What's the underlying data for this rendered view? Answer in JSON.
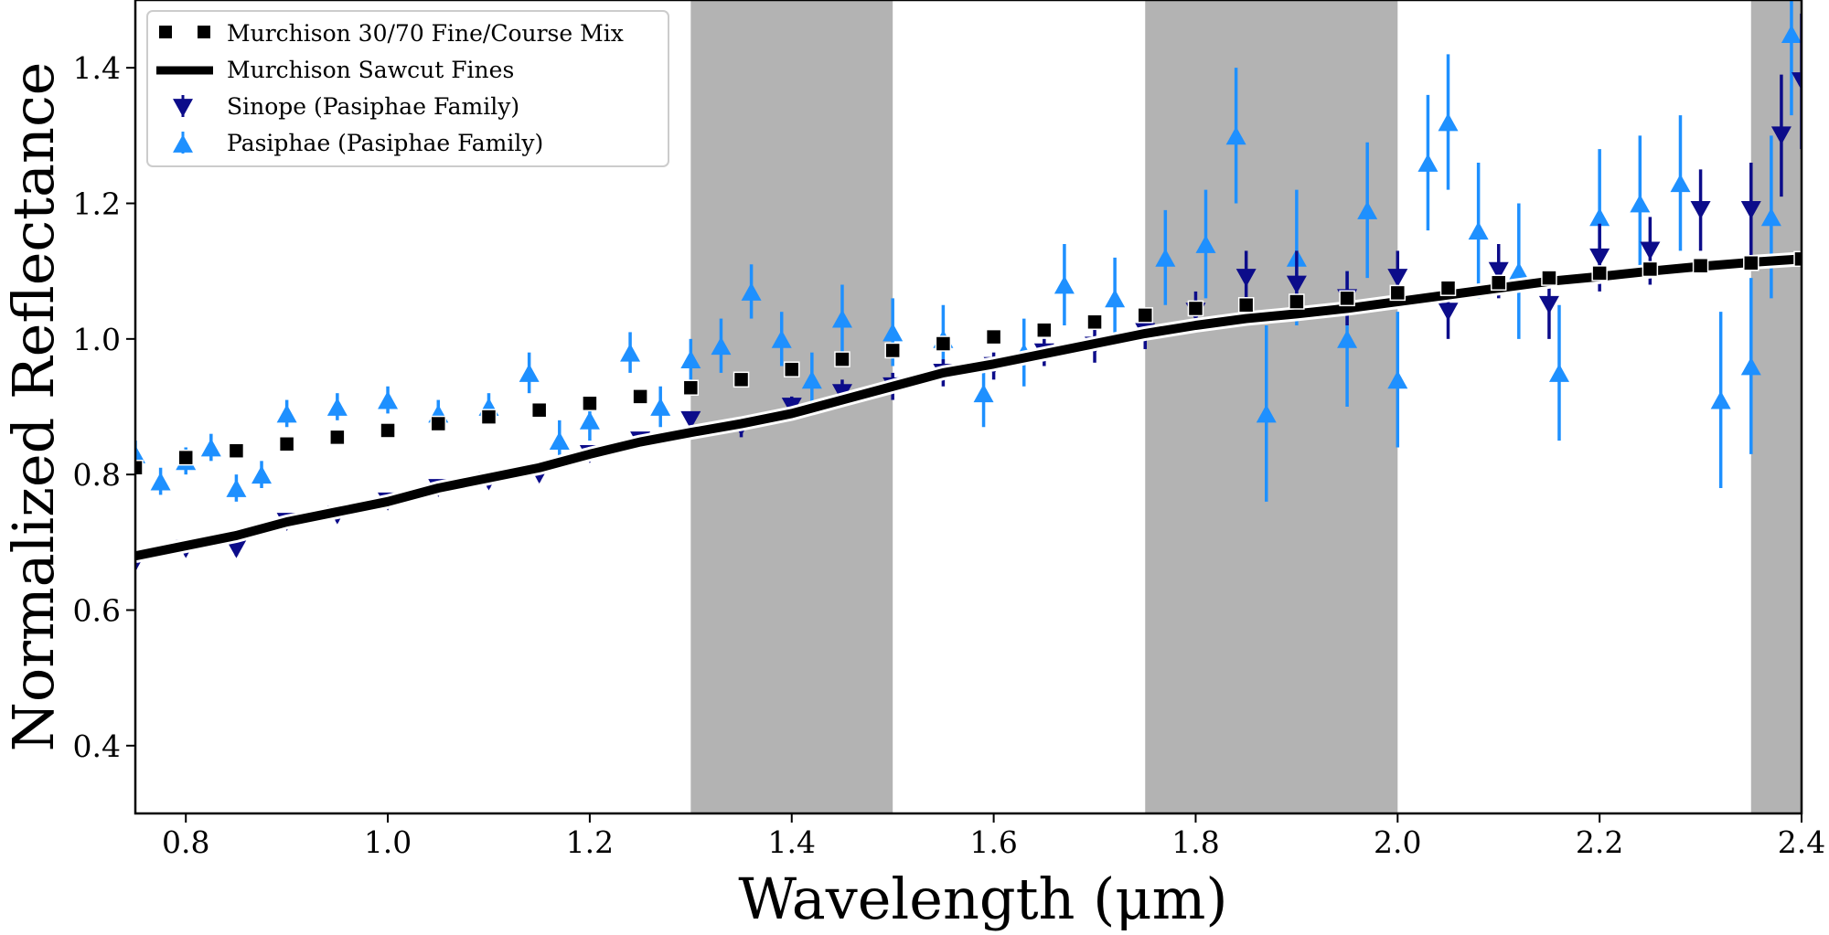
{
  "chart_data": {
    "type": "scatter",
    "xlabel": "Wavelength (μm)",
    "ylabel": "Normalized Reflectance",
    "xlim": [
      0.75,
      2.4
    ],
    "ylim": [
      0.3,
      1.5
    ],
    "xticks": [
      "0.8",
      "1.0",
      "1.2",
      "1.4",
      "1.6",
      "1.8",
      "2.0",
      "2.2",
      "2.4"
    ],
    "yticks": [
      "0.4",
      "0.6",
      "0.8",
      "1.0",
      "1.2",
      "1.4"
    ],
    "grid": false,
    "legend_position": "top-left",
    "shaded_bands": [
      [
        1.3,
        1.5
      ],
      [
        1.75,
        2.0
      ],
      [
        2.35,
        2.4
      ]
    ],
    "band_color": "#b3b3b3",
    "series": [
      {
        "name": "Murchison 30/70 Fine/Course Mix",
        "style": "dotted-line",
        "color": "#000000",
        "x": [
          0.75,
          0.8,
          0.85,
          0.9,
          0.95,
          1.0,
          1.05,
          1.1,
          1.15,
          1.2,
          1.25,
          1.3,
          1.35,
          1.4,
          1.45,
          1.5,
          1.55,
          1.6,
          1.65,
          1.7,
          1.75,
          1.8,
          1.85,
          1.9,
          1.95,
          2.0,
          2.05,
          2.1,
          2.15,
          2.2,
          2.25,
          2.3,
          2.35,
          2.4
        ],
        "y": [
          0.81,
          0.825,
          0.835,
          0.845,
          0.855,
          0.865,
          0.875,
          0.885,
          0.895,
          0.905,
          0.915,
          0.928,
          0.94,
          0.955,
          0.97,
          0.983,
          0.993,
          1.003,
          1.013,
          1.025,
          1.035,
          1.045,
          1.05,
          1.055,
          1.06,
          1.068,
          1.075,
          1.083,
          1.09,
          1.097,
          1.103,
          1.108,
          1.112,
          1.118
        ]
      },
      {
        "name": "Murchison Sawcut Fines",
        "style": "solid-line",
        "color": "#000000",
        "x": [
          0.75,
          0.8,
          0.85,
          0.9,
          0.95,
          1.0,
          1.05,
          1.1,
          1.15,
          1.2,
          1.25,
          1.3,
          1.35,
          1.4,
          1.45,
          1.5,
          1.55,
          1.6,
          1.65,
          1.7,
          1.75,
          1.8,
          1.85,
          1.9,
          1.95,
          2.0,
          2.05,
          2.1,
          2.15,
          2.2,
          2.25,
          2.3,
          2.35,
          2.4
        ],
        "y": [
          0.68,
          0.695,
          0.71,
          0.73,
          0.745,
          0.76,
          0.78,
          0.795,
          0.81,
          0.83,
          0.848,
          0.862,
          0.875,
          0.89,
          0.91,
          0.93,
          0.95,
          0.963,
          0.978,
          0.993,
          1.008,
          1.02,
          1.03,
          1.037,
          1.045,
          1.055,
          1.065,
          1.075,
          1.085,
          1.092,
          1.1,
          1.107,
          1.113,
          1.118
        ]
      },
      {
        "name": "Sinope (Pasiphae Family)",
        "style": "marker-down-triangle",
        "color": "#0c0c8a",
        "x": [
          0.75,
          0.8,
          0.85,
          0.9,
          0.95,
          1.0,
          1.05,
          1.1,
          1.15,
          1.2,
          1.25,
          1.3,
          1.35,
          1.4,
          1.45,
          1.5,
          1.55,
          1.6,
          1.65,
          1.7,
          1.75,
          1.8,
          1.85,
          1.9,
          1.95,
          2.0,
          2.05,
          2.1,
          2.15,
          2.2,
          2.25,
          2.3,
          2.35,
          2.38,
          2.4
        ],
        "y": [
          0.67,
          0.69,
          0.69,
          0.73,
          0.74,
          0.76,
          0.78,
          0.79,
          0.8,
          0.83,
          0.85,
          0.88,
          0.87,
          0.9,
          0.92,
          0.93,
          0.95,
          0.96,
          0.98,
          0.99,
          1.01,
          1.04,
          1.09,
          1.08,
          1.06,
          1.09,
          1.04,
          1.1,
          1.05,
          1.12,
          1.13,
          1.19,
          1.19,
          1.3,
          1.38
        ],
        "err": [
          0.01,
          0.01,
          0.01,
          0.01,
          0.01,
          0.01,
          0.01,
          0.01,
          0.01,
          0.01,
          0.01,
          0.01,
          0.015,
          0.015,
          0.02,
          0.02,
          0.02,
          0.02,
          0.02,
          0.025,
          0.025,
          0.03,
          0.04,
          0.05,
          0.04,
          0.04,
          0.04,
          0.04,
          0.05,
          0.05,
          0.05,
          0.06,
          0.07,
          0.09,
          0.1
        ]
      },
      {
        "name": "Pasiphae (Pasiphae Family)",
        "style": "marker-up-triangle",
        "color": "#1e90ff",
        "x": [
          0.75,
          0.775,
          0.8,
          0.825,
          0.85,
          0.875,
          0.9,
          0.95,
          1.0,
          1.05,
          1.1,
          1.14,
          1.17,
          1.2,
          1.24,
          1.27,
          1.3,
          1.33,
          1.36,
          1.39,
          1.42,
          1.45,
          1.5,
          1.55,
          1.59,
          1.63,
          1.67,
          1.72,
          1.77,
          1.81,
          1.84,
          1.87,
          1.9,
          1.95,
          1.97,
          2.0,
          2.03,
          2.05,
          2.08,
          2.12,
          2.16,
          2.2,
          2.24,
          2.28,
          2.32,
          2.35,
          2.37,
          2.39
        ],
        "y": [
          0.83,
          0.79,
          0.82,
          0.84,
          0.78,
          0.8,
          0.89,
          0.9,
          0.91,
          0.89,
          0.9,
          0.95,
          0.85,
          0.88,
          0.98,
          0.9,
          0.97,
          0.99,
          1.07,
          1.0,
          0.94,
          1.03,
          1.01,
          1.0,
          0.92,
          0.98,
          1.08,
          1.06,
          1.12,
          1.14,
          1.3,
          0.89,
          1.12,
          1.0,
          1.19,
          0.94,
          1.26,
          1.32,
          1.16,
          1.1,
          0.95,
          1.18,
          1.2,
          1.23,
          0.91,
          0.96,
          1.18,
          1.45
        ],
        "err": [
          0.02,
          0.02,
          0.02,
          0.02,
          0.02,
          0.02,
          0.02,
          0.02,
          0.02,
          0.02,
          0.02,
          0.03,
          0.03,
          0.03,
          0.03,
          0.03,
          0.03,
          0.04,
          0.04,
          0.04,
          0.04,
          0.05,
          0.05,
          0.05,
          0.05,
          0.05,
          0.06,
          0.06,
          0.07,
          0.08,
          0.1,
          0.13,
          0.1,
          0.1,
          0.1,
          0.1,
          0.1,
          0.1,
          0.1,
          0.1,
          0.1,
          0.1,
          0.1,
          0.1,
          0.13,
          0.13,
          0.12,
          0.12
        ]
      }
    ]
  }
}
